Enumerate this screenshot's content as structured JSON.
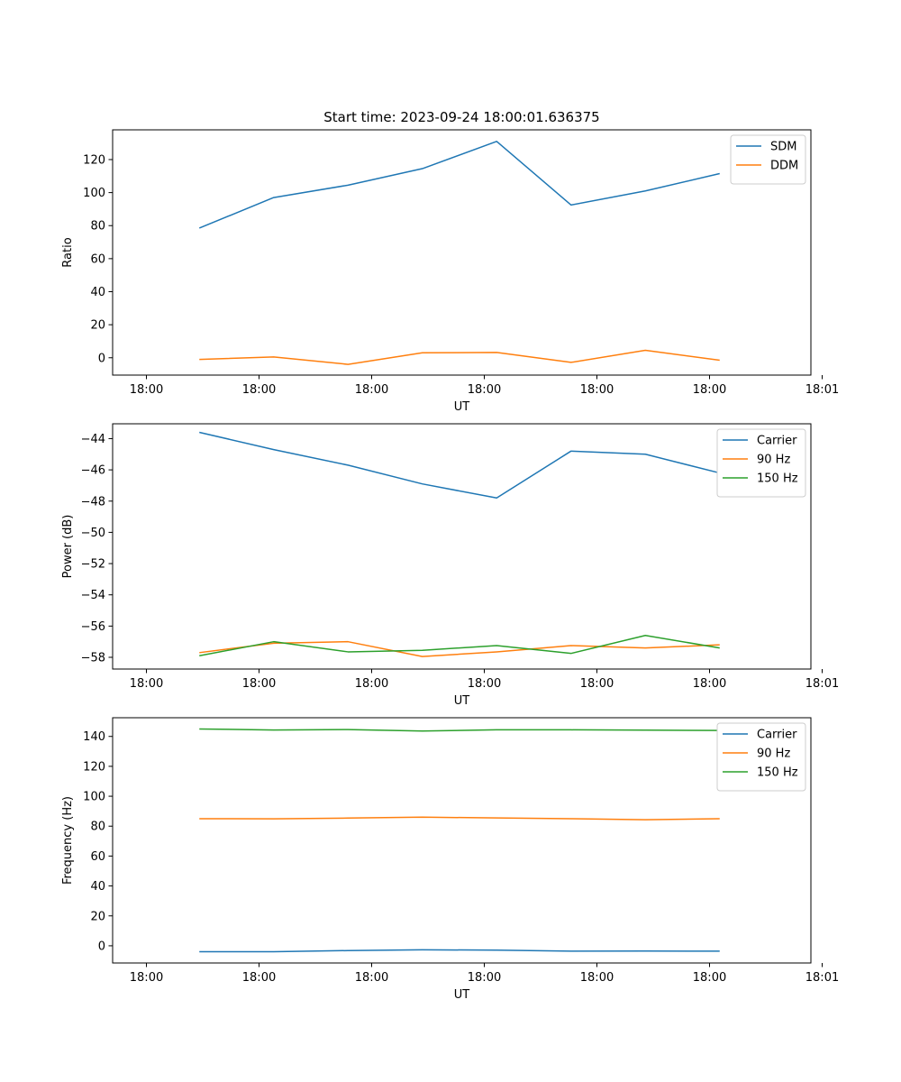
{
  "chart_data": [
    {
      "type": "line",
      "id": "ratio",
      "title": "Start time: 2023-09-24 18:00:01.636375",
      "xlabel": "UT",
      "ylabel": "Ratio",
      "xlim": [
        -0.3,
        5.9
      ],
      "ylim": [
        -10.5,
        138
      ],
      "xticks": [
        {
          "v": 0,
          "label": "18:00"
        },
        {
          "v": 1,
          "label": "18:00"
        },
        {
          "v": 2,
          "label": "18:00"
        },
        {
          "v": 3,
          "label": "18:00"
        },
        {
          "v": 4,
          "label": "18:00"
        },
        {
          "v": 5,
          "label": "18:00"
        },
        {
          "v": 6,
          "label": "18:01"
        }
      ],
      "yticks": [
        0,
        20,
        40,
        60,
        80,
        100,
        120
      ],
      "legend_position": "top-right",
      "x": [
        0.47,
        1.13,
        1.79,
        2.45,
        3.11,
        3.77,
        4.43,
        5.09
      ],
      "series": [
        {
          "name": "SDM",
          "color": "#1f77b4",
          "values": [
            78.5,
            97,
            104.5,
            114.5,
            131,
            92.5,
            101,
            111.5
          ]
        },
        {
          "name": "DDM",
          "color": "#ff7f0e",
          "values": [
            -1,
            0.5,
            -4,
            3,
            3.2,
            -2.8,
            4.5,
            -1.5
          ]
        }
      ]
    },
    {
      "type": "line",
      "id": "power",
      "title": "",
      "xlabel": "UT",
      "ylabel": "Power (dB)",
      "xlim": [
        -0.3,
        5.9
      ],
      "ylim": [
        -58.75,
        -43.05
      ],
      "xticks": [
        {
          "v": 0,
          "label": "18:00"
        },
        {
          "v": 1,
          "label": "18:00"
        },
        {
          "v": 2,
          "label": "18:00"
        },
        {
          "v": 3,
          "label": "18:00"
        },
        {
          "v": 4,
          "label": "18:00"
        },
        {
          "v": 5,
          "label": "18:00"
        },
        {
          "v": 6,
          "label": "18:01"
        }
      ],
      "yticks": [
        -58,
        -56,
        -54,
        -52,
        -50,
        -48,
        -46,
        -44
      ],
      "ytick_labels": [
        "−58",
        "−56",
        "−54",
        "−52",
        "−50",
        "−48",
        "−46",
        "−44"
      ],
      "legend_position": "top-right",
      "x": [
        0.47,
        1.13,
        1.79,
        2.45,
        3.11,
        3.77,
        4.43,
        5.09
      ],
      "series": [
        {
          "name": "Carrier",
          "color": "#1f77b4",
          "values": [
            -43.6,
            -44.7,
            -45.7,
            -46.9,
            -47.8,
            -44.8,
            -45.0,
            -46.2
          ]
        },
        {
          "name": "90 Hz",
          "color": "#ff7f0e",
          "values": [
            -57.7,
            -57.1,
            -57.0,
            -57.95,
            -57.65,
            -57.25,
            -57.4,
            -57.2
          ]
        },
        {
          "name": "150 Hz",
          "color": "#2ca02c",
          "values": [
            -57.9,
            -57.0,
            -57.65,
            -57.55,
            -57.25,
            -57.75,
            -56.6,
            -57.4
          ]
        }
      ]
    },
    {
      "type": "line",
      "id": "frequency",
      "title": "",
      "xlabel": "UT",
      "ylabel": "Frequency (Hz)",
      "xlim": [
        -0.3,
        5.9
      ],
      "ylim": [
        -11.5,
        152.5
      ],
      "xticks": [
        {
          "v": 0,
          "label": "18:00"
        },
        {
          "v": 1,
          "label": "18:00"
        },
        {
          "v": 2,
          "label": "18:00"
        },
        {
          "v": 3,
          "label": "18:00"
        },
        {
          "v": 4,
          "label": "18:00"
        },
        {
          "v": 5,
          "label": "18:00"
        },
        {
          "v": 6,
          "label": "18:01"
        }
      ],
      "yticks": [
        0,
        20,
        40,
        60,
        80,
        100,
        120,
        140
      ],
      "legend_position": "top-right",
      "x": [
        0.47,
        1.13,
        1.79,
        2.45,
        3.11,
        3.77,
        4.43,
        5.09
      ],
      "series": [
        {
          "name": "Carrier",
          "color": "#1f77b4",
          "values": [
            -4,
            -4,
            -3.2,
            -2.7,
            -2.9,
            -3.6,
            -3.5,
            -3.6
          ]
        },
        {
          "name": "90 Hz",
          "color": "#ff7f0e",
          "values": [
            85,
            84.9,
            85.4,
            86,
            85.5,
            85,
            84.3,
            85
          ]
        },
        {
          "name": "150 Hz",
          "color": "#2ca02c",
          "values": [
            145,
            144.3,
            144.6,
            143.6,
            144.4,
            144.4,
            144.2,
            144
          ]
        }
      ]
    }
  ]
}
